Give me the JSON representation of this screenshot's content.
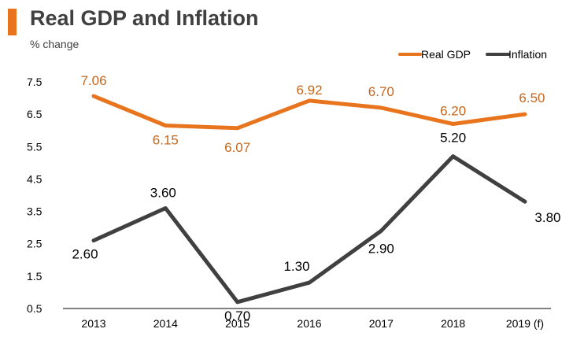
{
  "title": "Real GDP and Inflation",
  "subtitle": "% change",
  "colors": {
    "accent": "#E8741E",
    "gdp": "#E8741E",
    "gdp_label": "#C5661C",
    "inflation": "#404040"
  },
  "chart_data": {
    "type": "line",
    "categories": [
      "2013",
      "2014",
      "2015",
      "2016",
      "2017",
      "2018",
      "2019 (f)"
    ],
    "series": [
      {
        "name": "Real GDP",
        "values": [
          7.06,
          6.15,
          6.07,
          6.92,
          6.7,
          6.2,
          6.5
        ],
        "labels": [
          "7.06",
          "6.15",
          "6.07",
          "6.92",
          "6.70",
          "6.20",
          "6.50"
        ]
      },
      {
        "name": "Inflation",
        "values": [
          2.6,
          3.6,
          0.7,
          1.3,
          2.9,
          5.2,
          3.8
        ],
        "labels": [
          "2.60",
          "3.60",
          "0.70",
          "1.30",
          "2.90",
          "5.20",
          "3.80"
        ]
      }
    ],
    "yticks": [
      "7.5",
      "6.5",
      "5.5",
      "4.5",
      "3.5",
      "2.5",
      "1.5",
      "0.5"
    ],
    "ylim": [
      0.5,
      7.5
    ],
    "legend_position": "top-right",
    "grid": false
  }
}
